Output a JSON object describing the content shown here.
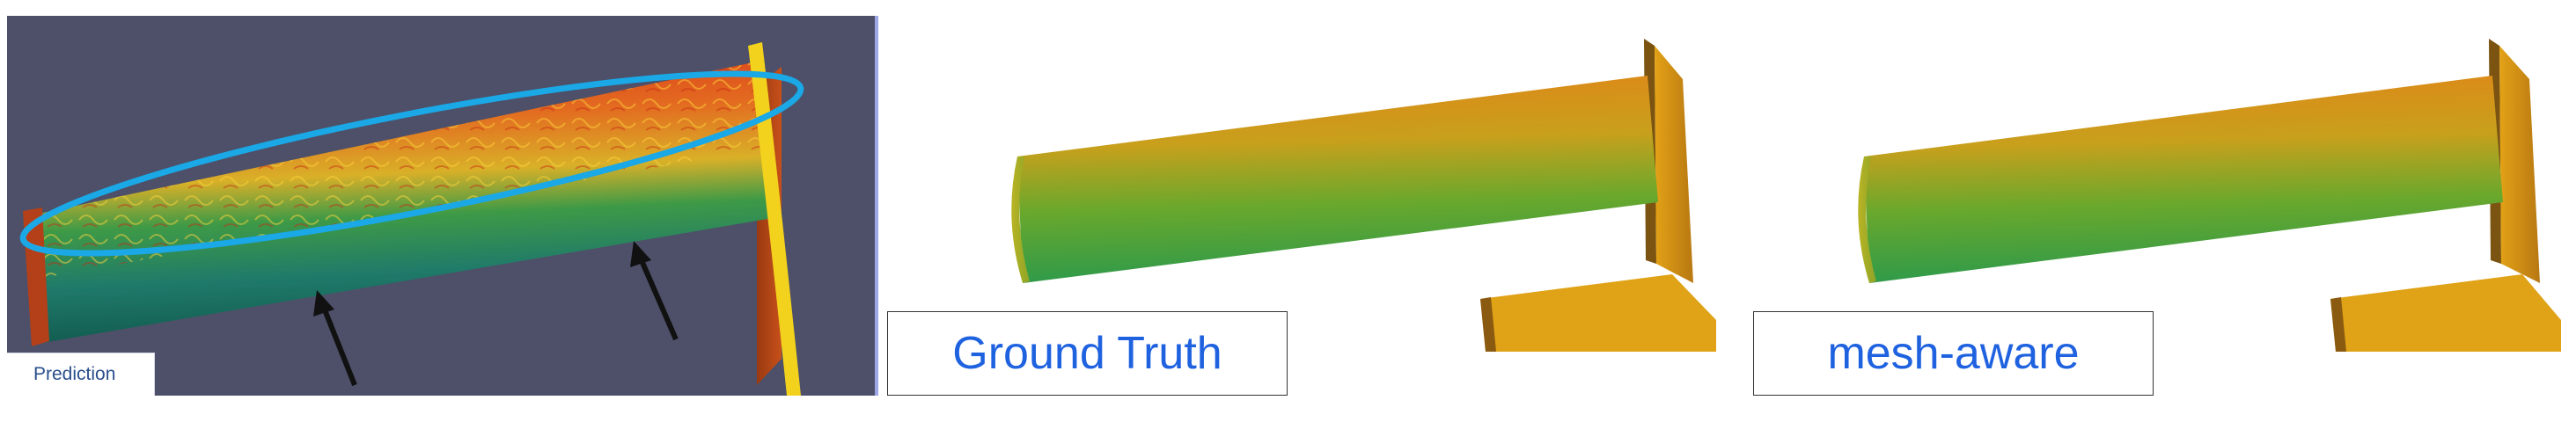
{
  "panels": {
    "prediction": {
      "tab_label": "Prediction"
    },
    "ground_truth": {
      "label": "Ground Truth"
    },
    "mesh_aware": {
      "label": "mesh-aware"
    }
  },
  "colors": {
    "viewport_bg": "#4d5068",
    "highlight_ellipse": "#1aa8e6",
    "label_text": "#1f62e0",
    "wall": "#f2d21c"
  }
}
